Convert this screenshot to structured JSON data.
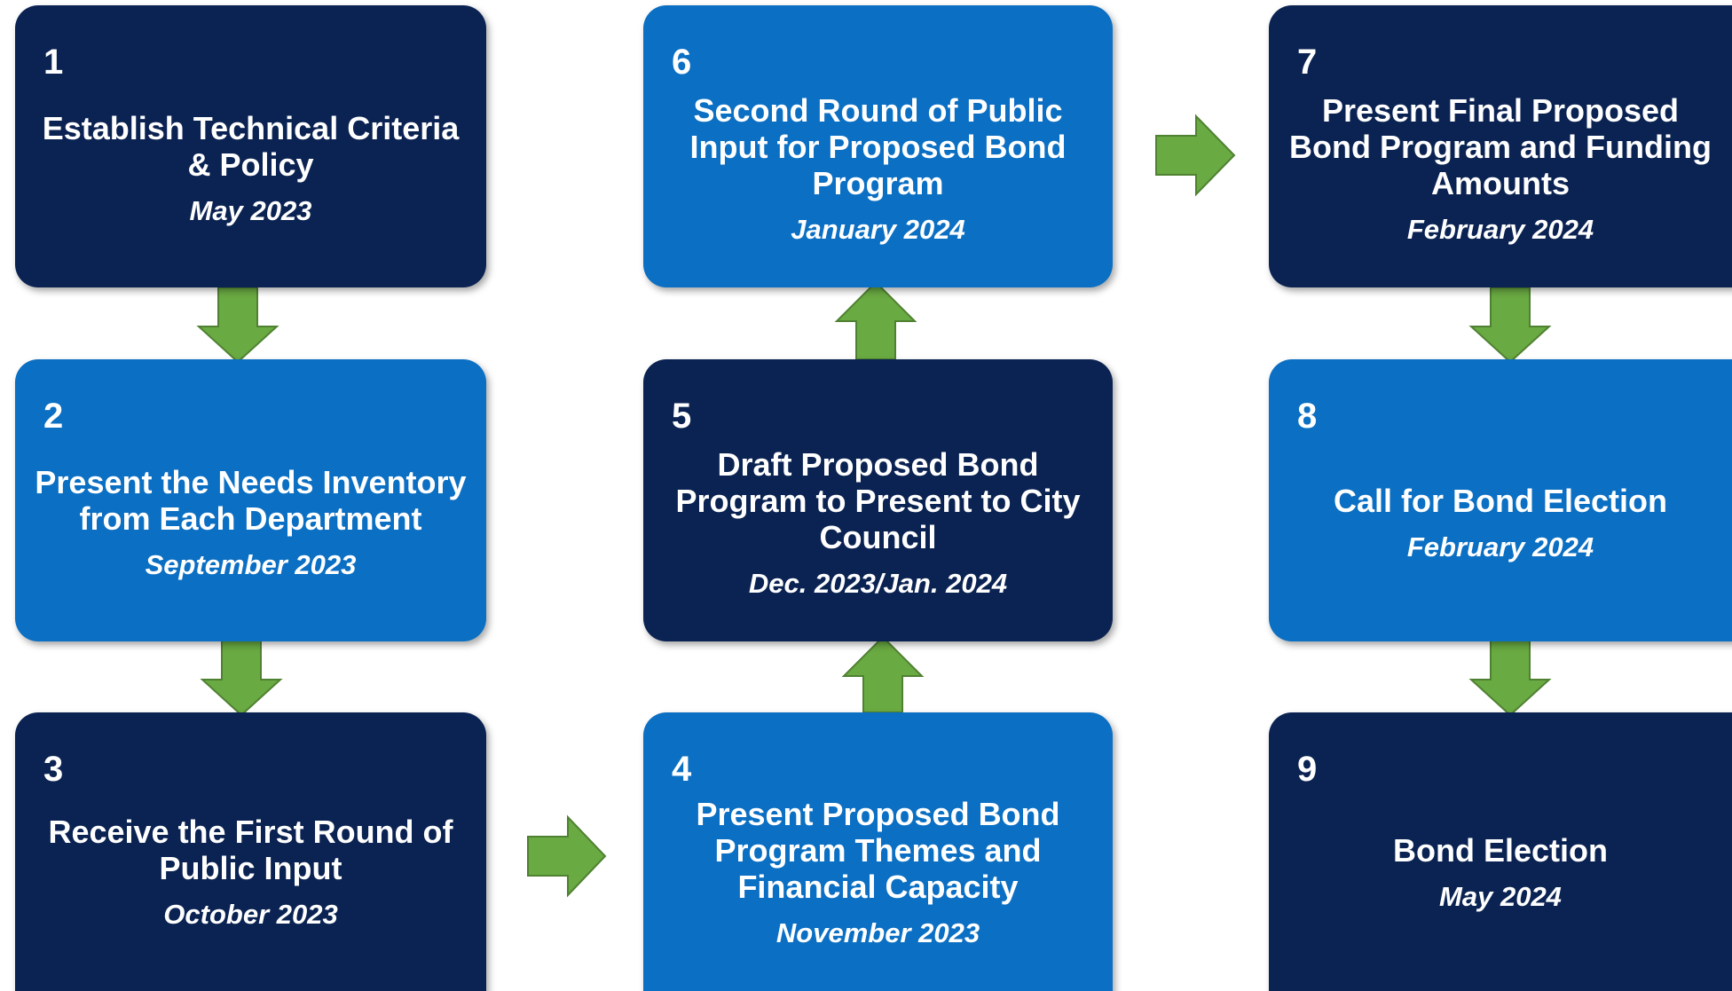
{
  "steps": [
    {
      "number": "1",
      "title": "Establish Technical Criteria & Policy",
      "date": "May 2023"
    },
    {
      "number": "2",
      "title": "Present the Needs Inventory from Each Department",
      "date": "September 2023"
    },
    {
      "number": "3",
      "title": "Receive the First Round of Public Input",
      "date": "October 2023"
    },
    {
      "number": "4",
      "title": "Present Proposed Bond Program Themes and Financial Capacity",
      "date": "November 2023"
    },
    {
      "number": "5",
      "title": "Draft Proposed Bond Program to Present to City Council",
      "date": "Dec. 2023/Jan. 2024"
    },
    {
      "number": "6",
      "title": "Second Round of Public Input for Proposed Bond Program",
      "date": "January 2024"
    },
    {
      "number": "7",
      "title": "Present Final Proposed Bond Program and Funding Amounts",
      "date": "February 2024"
    },
    {
      "number": "8",
      "title": "Call for Bond Election",
      "date": "February 2024"
    },
    {
      "number": "9",
      "title": "Bond Election",
      "date": "May 2024"
    }
  ]
}
